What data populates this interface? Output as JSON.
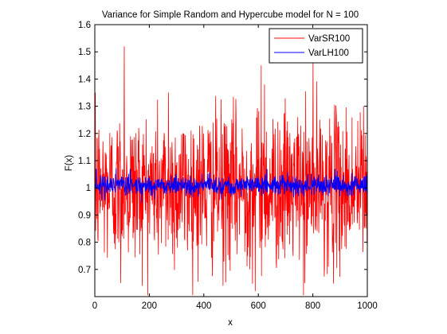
{
  "chart_data": {
    "type": "line",
    "title": "Variance for Simple Random and Hypercube model for N = 100",
    "xlabel": "x",
    "ylabel": "F(x)",
    "xlim": [
      0,
      1000
    ],
    "ylim": [
      0.6,
      1.6
    ],
    "x_ticks": [
      "0",
      "200",
      "400",
      "600",
      "800",
      "1000"
    ],
    "y_ticks": [
      "0.7",
      "0.8",
      "0.9",
      "1",
      "1.1",
      "1.2",
      "1.3",
      "1.4",
      "1.5",
      "1.6"
    ],
    "grid": false,
    "legend": {
      "placement": "top-right"
    },
    "series": [
      {
        "name": "VarSR100",
        "color": "#ff0000",
        "n_points": 1000,
        "mean": 1.0,
        "approx_std": 0.14,
        "peaks": [
          {
            "x": 2,
            "y": 1.35
          },
          {
            "x": 108,
            "y": 1.52
          },
          {
            "x": 270,
            "y": 1.35
          },
          {
            "x": 610,
            "y": 1.45
          },
          {
            "x": 622,
            "y": 1.38
          },
          {
            "x": 800,
            "y": 1.47
          },
          {
            "x": 985,
            "y": 1.3
          }
        ],
        "troughs": [
          {
            "x": 95,
            "y": 0.65
          },
          {
            "x": 470,
            "y": 0.64
          },
          {
            "x": 588,
            "y": 0.62
          },
          {
            "x": 770,
            "y": 0.65
          }
        ]
      },
      {
        "name": "VarLH100",
        "color": "#0000ff",
        "n_points": 1000,
        "mean": 1.01,
        "approx_std": 0.018,
        "peaks": [
          {
            "x": 5,
            "y": 1.07
          },
          {
            "x": 130,
            "y": 1.07
          },
          {
            "x": 630,
            "y": 1.07
          },
          {
            "x": 880,
            "y": 1.07
          }
        ],
        "troughs": [
          {
            "x": 210,
            "y": 0.97
          },
          {
            "x": 500,
            "y": 0.97
          },
          {
            "x": 940,
            "y": 0.97
          }
        ]
      }
    ]
  }
}
